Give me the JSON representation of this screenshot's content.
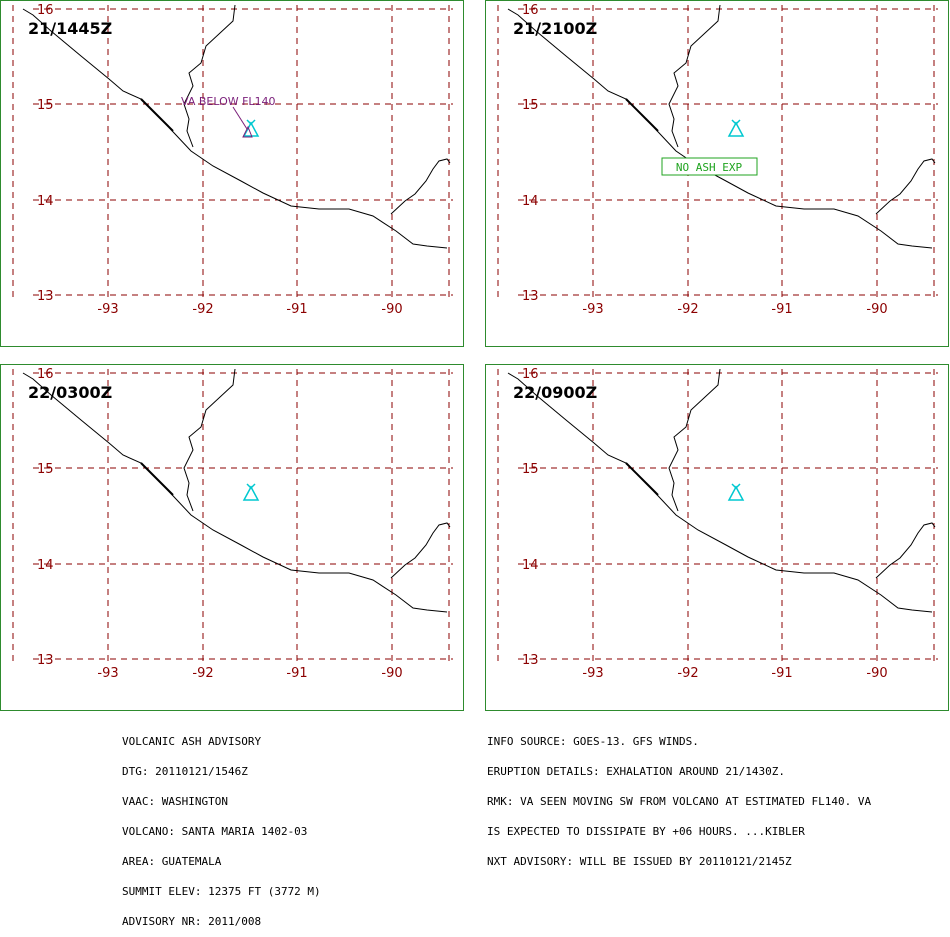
{
  "panels": [
    {
      "time": "21/1445Z",
      "annotation": "VA BELOW FL140",
      "annotation_type": "ash",
      "annotation_color": "#7a1f7a"
    },
    {
      "time": "21/2100Z",
      "annotation": "NO ASH EXP",
      "annotation_type": "box",
      "annotation_color": "#1fa31f"
    },
    {
      "time": "22/0300Z",
      "annotation": "",
      "annotation_type": "none"
    },
    {
      "time": "22/0900Z",
      "annotation": "",
      "annotation_type": "none"
    }
  ],
  "map": {
    "lat_labels": [
      "16",
      "15",
      "14",
      "13"
    ],
    "lon_labels": [
      "-93",
      "-92",
      "-91",
      "-90"
    ],
    "grid_color": "#8b0000",
    "coast_color": "#000000",
    "volcano_icon": "volcano-triangle-icon",
    "volcano_color": "#00c8d0",
    "panel_border_color": "#2e8b2e"
  },
  "advisory": {
    "left_lines": [
      "VOLCANIC ASH ADVISORY",
      "DTG: 20110121/1546Z",
      "VAAC: WASHINGTON",
      "VOLCANO: SANTA MARIA 1402-03",
      "AREA: GUATEMALA",
      "SUMMIT ELEV: 12375 FT (3772 M)",
      "ADVISORY NR: 2011/008"
    ],
    "right_lines": [
      "INFO SOURCE: GOES-13. GFS WINDS.",
      "ERUPTION DETAILS: EXHALATION AROUND 21/1430Z.",
      "RMK: VA SEEN MOVING SW FROM VOLCANO AT ESTIMATED FL140. VA",
      "IS EXPECTED TO DISSIPATE BY +06 HOURS. ...KIBLER",
      "NXT ADVISORY: WILL BE ISSUED BY 20110121/2145Z"
    ]
  }
}
